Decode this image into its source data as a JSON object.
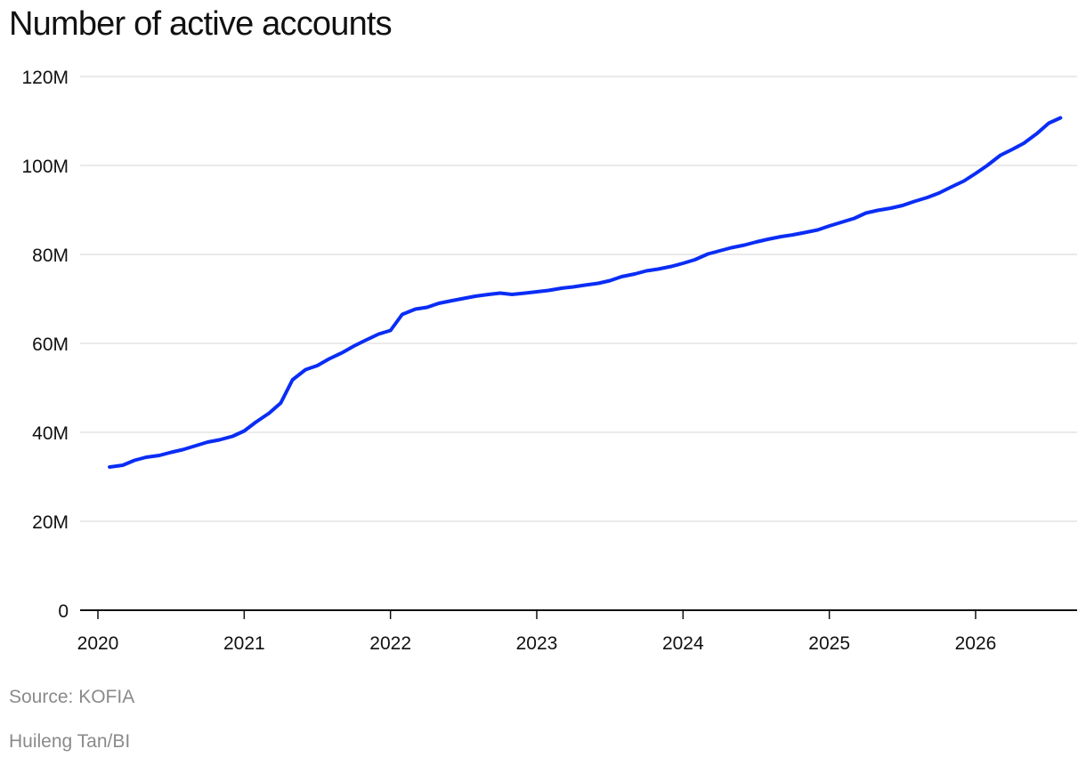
{
  "title": "Number of active accounts",
  "source": "Source: KOFIA",
  "credit": "Huileng Tan/BI",
  "colors": {
    "line": "#0a2df5",
    "grid": "#dddddd",
    "axis": "#111111"
  },
  "chart_data": {
    "type": "line",
    "title": "Number of active accounts",
    "xlabel": "",
    "ylabel": "",
    "xlim": [
      2020,
      2026.7
    ],
    "ylim": [
      0,
      120
    ],
    "y_unit": "M",
    "grid": true,
    "x_ticks": [
      "2020",
      "2021",
      "2022",
      "2023",
      "2024",
      "2025",
      "2026"
    ],
    "y_ticks": [
      "0",
      "20M",
      "40M",
      "60M",
      "80M",
      "100M",
      "120M"
    ],
    "series": [
      {
        "name": "",
        "x": [
          2020.08,
          2020.17,
          2020.25,
          2020.33,
          2020.42,
          2020.5,
          2020.58,
          2020.67,
          2020.75,
          2020.83,
          2020.92,
          2021.0,
          2021.08,
          2021.17,
          2021.25,
          2021.33,
          2021.42,
          2021.5,
          2021.58,
          2021.67,
          2021.75,
          2021.83,
          2021.92,
          2022.0,
          2022.08,
          2022.17,
          2022.25,
          2022.33,
          2022.42,
          2022.5,
          2022.58,
          2022.67,
          2022.75,
          2022.83,
          2022.92,
          2023.0,
          2023.08,
          2023.17,
          2023.25,
          2023.33,
          2023.42,
          2023.5,
          2023.58,
          2023.67,
          2023.75,
          2023.83,
          2023.92,
          2024.0,
          2024.08,
          2024.17,
          2024.25,
          2024.33,
          2024.42,
          2024.5,
          2024.58,
          2024.67,
          2024.75,
          2024.83,
          2024.92,
          2025.0,
          2025.08,
          2025.17,
          2025.25,
          2025.33,
          2025.42,
          2025.5,
          2025.58,
          2025.67,
          2025.75,
          2025.83,
          2025.92,
          2026.0,
          2026.08,
          2026.17,
          2026.25,
          2026.33,
          2026.42,
          2026.5,
          2026.58
        ],
        "values": [
          32.2,
          32.6,
          33.7,
          34.4,
          34.8,
          35.5,
          36.1,
          37.0,
          37.8,
          38.3,
          39.1,
          40.3,
          42.3,
          44.3,
          46.6,
          51.8,
          54.1,
          55.0,
          56.5,
          57.9,
          59.4,
          60.7,
          62.1,
          62.9,
          66.5,
          67.7,
          68.1,
          69.0,
          69.6,
          70.1,
          70.6,
          71.0,
          71.3,
          71.0,
          71.3,
          71.6,
          71.9,
          72.4,
          72.7,
          73.1,
          73.5,
          74.1,
          75.0,
          75.6,
          76.3,
          76.7,
          77.3,
          78.0,
          78.8,
          80.1,
          80.8,
          81.5,
          82.1,
          82.8,
          83.4,
          84.0,
          84.4,
          84.9,
          85.5,
          86.4,
          87.2,
          88.1,
          89.3,
          89.9,
          90.4,
          91.0,
          91.9,
          92.8,
          93.8,
          95.1,
          96.5,
          98.2,
          100.0,
          102.3,
          103.6,
          105.0,
          107.2,
          109.5,
          110.7
        ]
      }
    ]
  }
}
